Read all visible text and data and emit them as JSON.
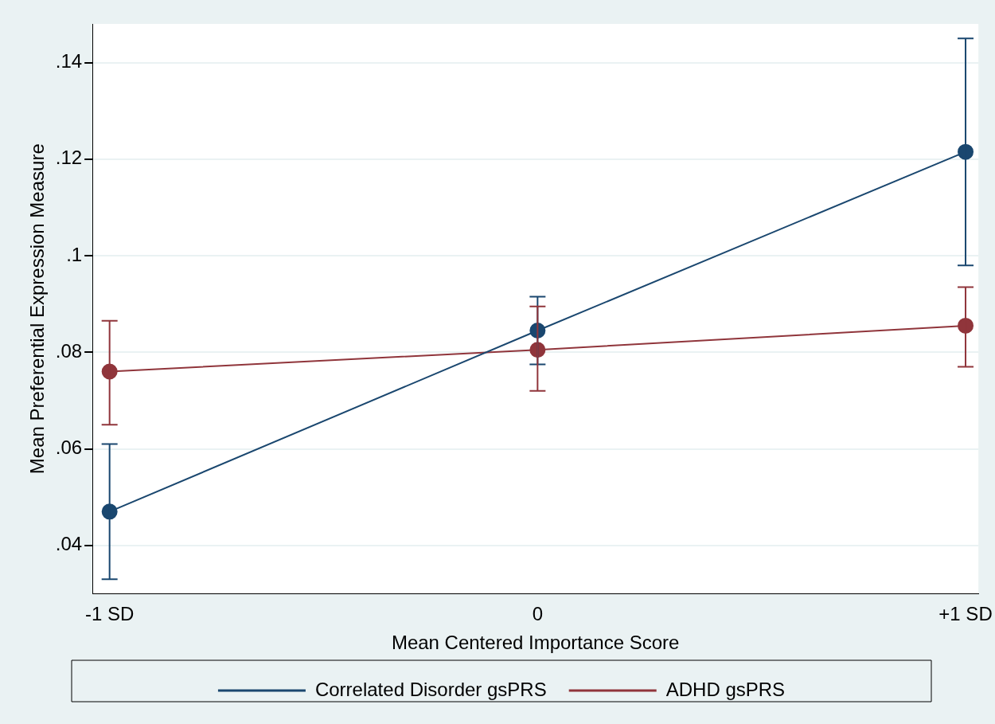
{
  "chart_data": {
    "type": "line",
    "xlabel": "Mean Centered Importance Score",
    "ylabel": "Mean Preferential Expression Measure",
    "x": [
      -1,
      0,
      1
    ],
    "series": [
      {
        "name": "Correlated Disorder gsPRS",
        "color": "#1a476f",
        "values": [
          0.047,
          0.0845,
          0.1215
        ],
        "errors": [
          [
            0.033,
            0.061
          ],
          [
            0.0775,
            0.0915
          ],
          [
            0.098,
            0.145
          ]
        ]
      },
      {
        "name": "ADHD gsPRS",
        "color": "#90353b",
        "values": [
          0.076,
          0.0805,
          0.0855
        ],
        "errors": [
          [
            0.065,
            0.0865
          ],
          [
            0.072,
            0.0895
          ],
          [
            0.077,
            0.0935
          ]
        ]
      }
    ],
    "xlim": [
      -1.04,
      1.03
    ],
    "xticks": [
      {
        "value": -1,
        "label": "-1 SD"
      },
      {
        "value": 0,
        "label": "0"
      },
      {
        "value": 1,
        "label": "+1 SD"
      }
    ],
    "ylim": [
      0.03,
      0.148
    ],
    "yticks": [
      {
        "value": 0.04,
        "label": ".04"
      },
      {
        "value": 0.06,
        "label": ".06"
      },
      {
        "value": 0.08,
        "label": ".08"
      },
      {
        "value": 0.1,
        "label": ".1"
      },
      {
        "value": 0.12,
        "label": ".12"
      },
      {
        "value": 0.14,
        "label": ".14"
      }
    ],
    "grid": "y",
    "legend": "bottom",
    "marker": "circle",
    "line_style": "solid"
  }
}
